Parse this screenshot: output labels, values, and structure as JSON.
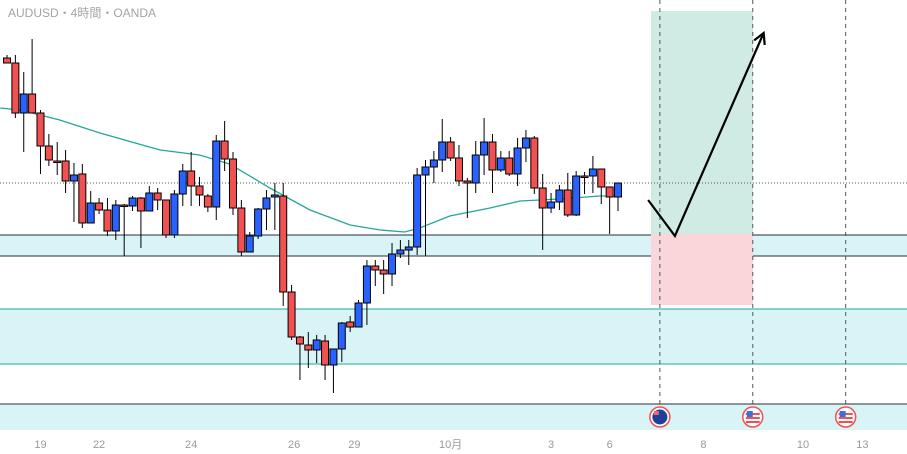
{
  "header": {
    "title": "AUDUSD・4時間・OANDA"
  },
  "colors": {
    "up": "#2962ff",
    "down": "#f15152",
    "ma": "#26a69a",
    "zone": "#d8f4f7",
    "profit": "#d0ebe4",
    "loss": "#fad6db",
    "price_line": "#2962ff"
  },
  "chart_data": {
    "type": "candlestick",
    "symbol": "AUDUSD",
    "timeframe": "4時間",
    "broker": "OANDA",
    "value_unit": "relative price index",
    "ylim": [
      0,
      460
    ],
    "candles_ohlc": [
      [
        402,
        405,
        397,
        397
      ],
      [
        397,
        405,
        342,
        347
      ],
      [
        347,
        388,
        308,
        366
      ],
      [
        366,
        421,
        347,
        347
      ],
      [
        347,
        350,
        286,
        314
      ],
      [
        314,
        326,
        294,
        300
      ],
      [
        299,
        318,
        285,
        299
      ],
      [
        299,
        310,
        267,
        279
      ],
      [
        279,
        297,
        238,
        285
      ],
      [
        286,
        296,
        232,
        237
      ],
      [
        237,
        269,
        237,
        257
      ],
      [
        257,
        262,
        246,
        250
      ],
      [
        250,
        262,
        224,
        229
      ],
      [
        229,
        260,
        220,
        255
      ],
      [
        255,
        256,
        204,
        255
      ],
      [
        254,
        264,
        249,
        262
      ],
      [
        262,
        263,
        212,
        249
      ],
      [
        249,
        274,
        249,
        267
      ],
      [
        267,
        272,
        250,
        260
      ],
      [
        260,
        260,
        222,
        225
      ],
      [
        225,
        270,
        222,
        266
      ],
      [
        266,
        296,
        254,
        289
      ],
      [
        289,
        308,
        254,
        274
      ],
      [
        274,
        283,
        254,
        265
      ],
      [
        264,
        266,
        248,
        253
      ],
      [
        253,
        325,
        240,
        319
      ],
      [
        319,
        339,
        289,
        301
      ],
      [
        301,
        308,
        245,
        252
      ],
      [
        252,
        260,
        204,
        208
      ],
      [
        208,
        228,
        208,
        224
      ],
      [
        224,
        252,
        221,
        251
      ],
      [
        251,
        270,
        230,
        262
      ],
      [
        263,
        277,
        230,
        265
      ],
      [
        264,
        277,
        154,
        168
      ],
      [
        168,
        175,
        120,
        123
      ],
      [
        123,
        124,
        80,
        116
      ],
      [
        115,
        128,
        92,
        110
      ],
      [
        110,
        125,
        97,
        120
      ],
      [
        119,
        125,
        80,
        95
      ],
      [
        95,
        111,
        67,
        111
      ],
      [
        111,
        138,
        98,
        137
      ],
      [
        138,
        144,
        128,
        133
      ],
      [
        133,
        160,
        133,
        157
      ],
      [
        157,
        200,
        135,
        194
      ],
      [
        194,
        200,
        174,
        190
      ],
      [
        190,
        200,
        166,
        186
      ],
      [
        186,
        217,
        174,
        206
      ],
      [
        206,
        220,
        202,
        210
      ],
      [
        210,
        220,
        195,
        213
      ],
      [
        213,
        292,
        205,
        285
      ],
      [
        285,
        300,
        204,
        293
      ],
      [
        293,
        309,
        277,
        300
      ],
      [
        300,
        341,
        288,
        318
      ],
      [
        318,
        323,
        299,
        302
      ],
      [
        302,
        315,
        274,
        279
      ],
      [
        279,
        282,
        242,
        277
      ],
      [
        277,
        319,
        267,
        305
      ],
      [
        305,
        342,
        285,
        318
      ],
      [
        318,
        326,
        267,
        290
      ],
      [
        290,
        309,
        288,
        302
      ],
      [
        302,
        309,
        284,
        286
      ],
      [
        286,
        322,
        274,
        312
      ],
      [
        312,
        330,
        298,
        322
      ],
      [
        322,
        324,
        266,
        272
      ],
      [
        272,
        286,
        210,
        252
      ],
      [
        252,
        267,
        247,
        258
      ],
      [
        258,
        275,
        250,
        270
      ],
      [
        270,
        287,
        243,
        245
      ],
      [
        245,
        289,
        244,
        284
      ],
      [
        284,
        288,
        266,
        284
      ],
      [
        284,
        304,
        267,
        291
      ],
      [
        291,
        291,
        256,
        273
      ],
      [
        273,
        273,
        226,
        263
      ],
      [
        263,
        277,
        249,
        277
      ]
    ],
    "moving_average": [
      [
        0.2,
        352
      ],
      [
        2.6,
        350
      ],
      [
        7.3,
        340
      ],
      [
        12.1,
        327
      ],
      [
        19.3,
        310
      ],
      [
        24,
        305
      ],
      [
        27.6,
        296
      ],
      [
        32.4,
        272
      ],
      [
        37.2,
        250
      ],
      [
        42,
        235
      ],
      [
        45.6,
        230
      ],
      [
        48.5,
        228
      ],
      [
        50.3,
        232
      ],
      [
        53.9,
        244
      ],
      [
        58.7,
        252
      ],
      [
        62.3,
        259
      ],
      [
        67,
        261
      ],
      [
        71.8,
        264
      ],
      [
        74.2,
        264
      ]
    ],
    "current_price": 277,
    "zones": [
      {
        "top": 225,
        "bottom": 204,
        "border": "#2a2e39"
      },
      {
        "top": 151,
        "bottom": 96,
        "border": "#26a69a"
      }
    ],
    "position": {
      "type": "long",
      "entry": 226,
      "target": 449,
      "stop": 155
    },
    "projection": [
      [
        77.6,
        260
      ],
      [
        80.8,
        224
      ],
      [
        91.4,
        427
      ]
    ],
    "x_tick_labels": [
      {
        "label": "19",
        "index": 5
      },
      {
        "label": "22",
        "index": 12
      },
      {
        "label": "24",
        "index": 23
      },
      {
        "label": "26",
        "index": 35.3
      },
      {
        "label": "29",
        "index": 42.5
      },
      {
        "label": "10月",
        "index": 54
      },
      {
        "label": "3",
        "index": 66
      },
      {
        "label": "6",
        "index": 73
      },
      {
        "label": "8",
        "index": 84.2
      },
      {
        "label": "10",
        "index": 96.1
      },
      {
        "label": "13",
        "index": 103.2
      }
    ],
    "events": [
      {
        "flag": "australia-flag",
        "index": 79
      },
      {
        "flag": "us-flag",
        "index": 90.1
      },
      {
        "flag": "us-flag",
        "index": 101.2
      }
    ]
  }
}
